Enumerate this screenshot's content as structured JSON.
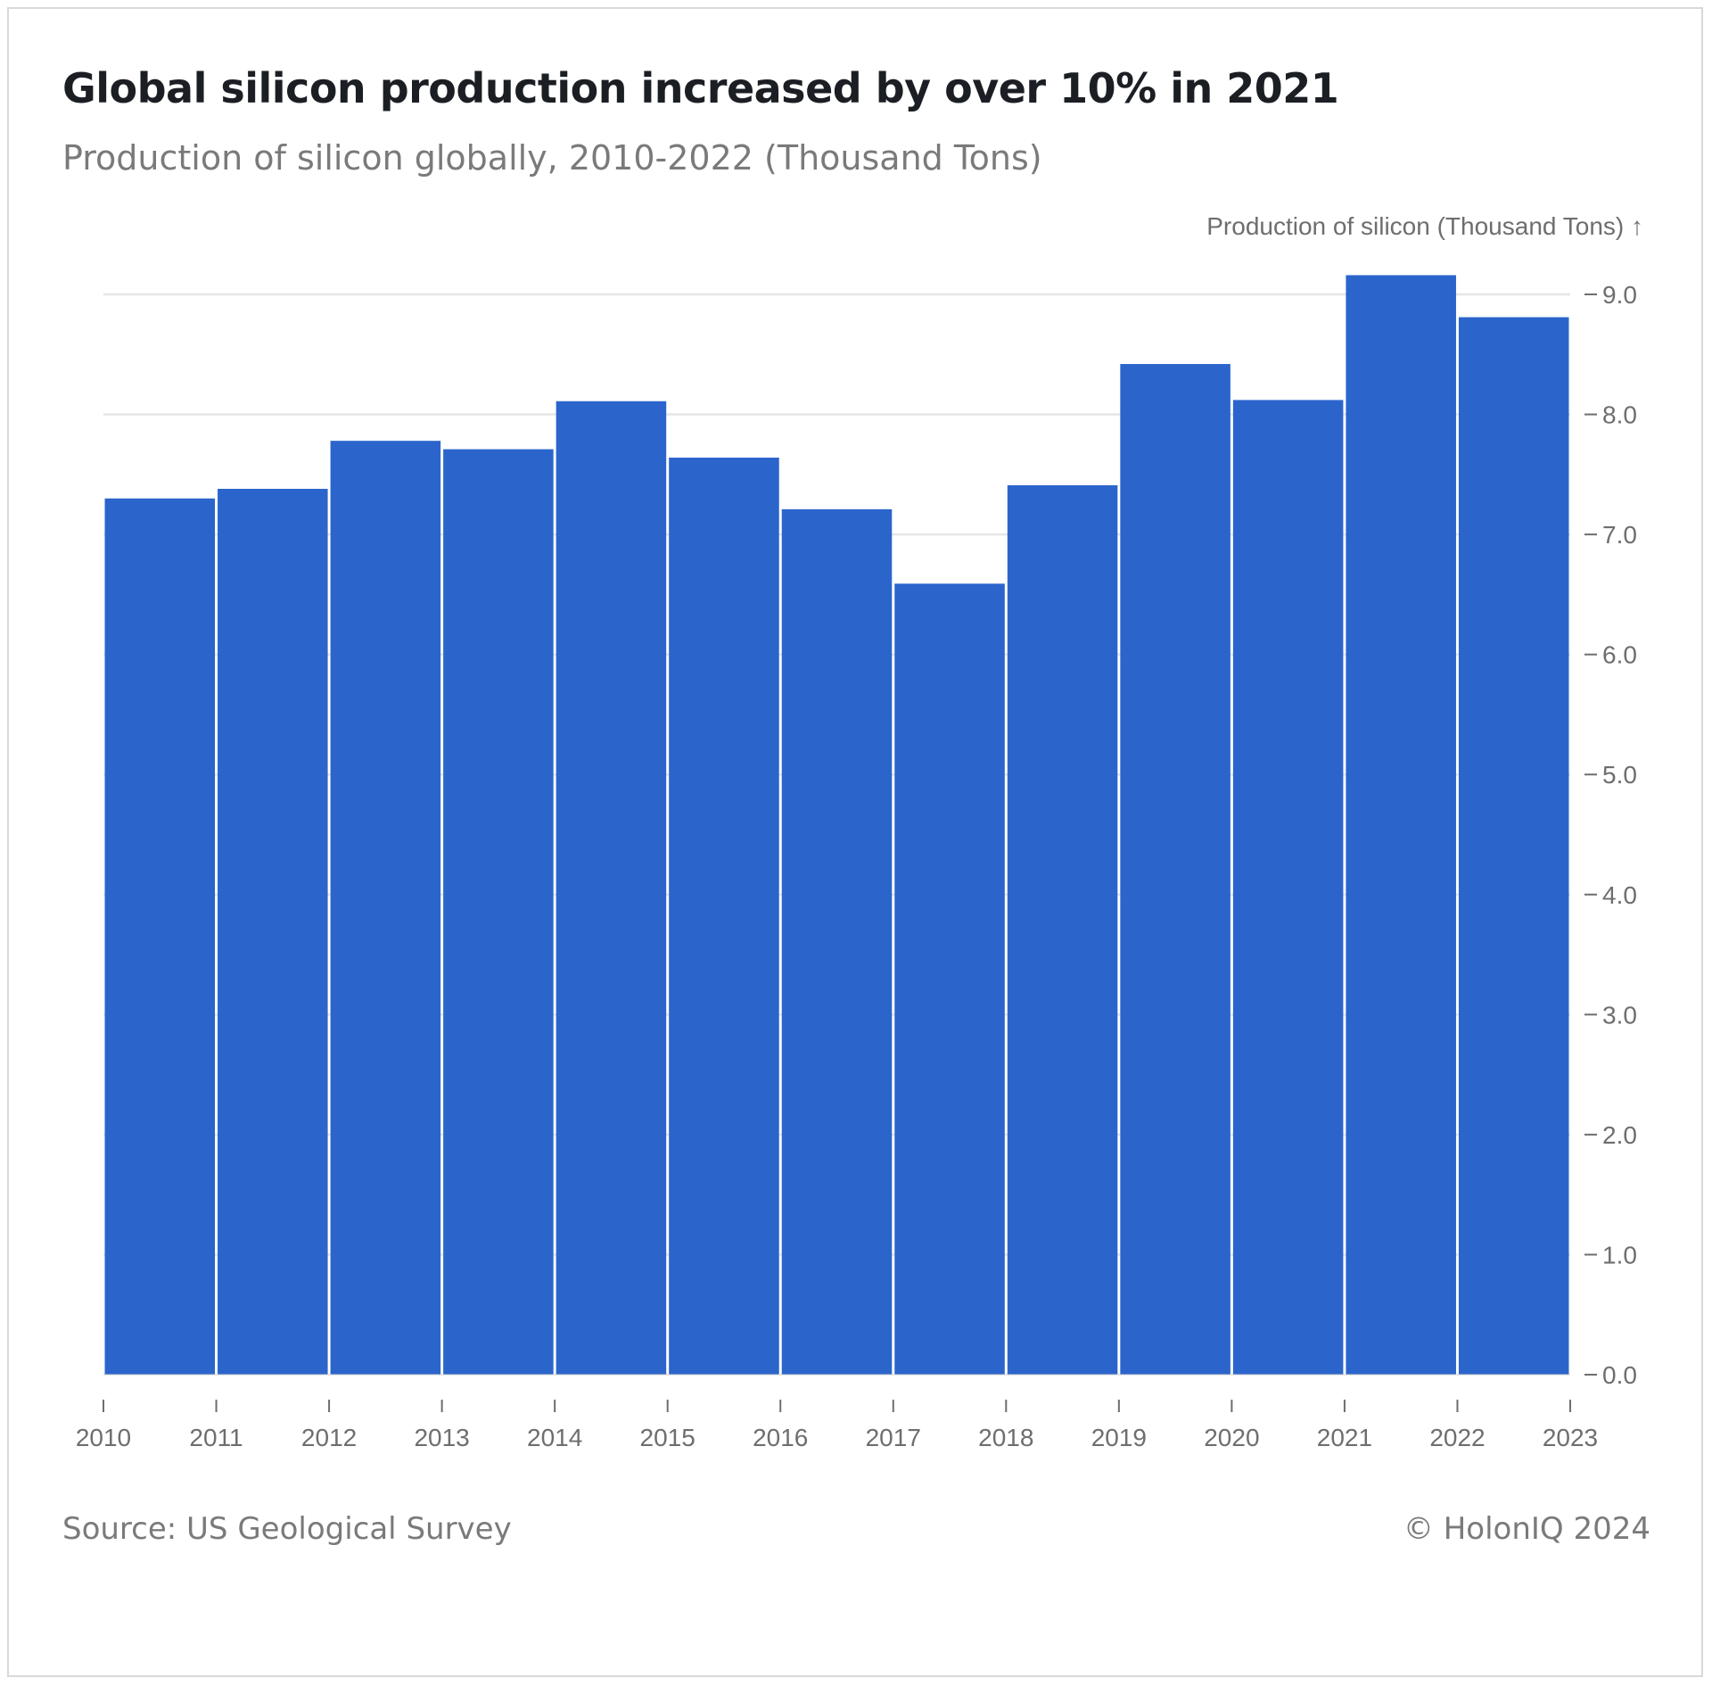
{
  "header": {
    "title": "Global silicon production increased by over 10% in 2021",
    "subtitle": "Production of silicon globally, 2010-2022 (Thousand Tons)"
  },
  "footer": {
    "source": "Source: US Geological Survey",
    "copyright": "© HolonIQ 2024"
  },
  "colors": {
    "bar": "#2b65cc",
    "gridline": "#e6e6e6",
    "axis_text": "#6e6e6e"
  },
  "chart_data": {
    "type": "bar",
    "x_edges": [
      2010,
      2011,
      2012,
      2013,
      2014,
      2015,
      2016,
      2017,
      2018,
      2019,
      2020,
      2021,
      2022,
      2023
    ],
    "x_tick_labels": [
      "2010",
      "2011",
      "2012",
      "2013",
      "2014",
      "2015",
      "2016",
      "2017",
      "2018",
      "2019",
      "2020",
      "2021",
      "2022",
      "2023"
    ],
    "categories": [
      "2010",
      "2011",
      "2012",
      "2013",
      "2014",
      "2015",
      "2016",
      "2017",
      "2018",
      "2019",
      "2020",
      "2021",
      "2022"
    ],
    "values": [
      7.3,
      7.38,
      7.78,
      7.71,
      8.11,
      7.64,
      7.21,
      6.59,
      7.41,
      8.42,
      8.12,
      9.16,
      8.81
    ],
    "ylabel": "Production of silicon (Thousand Tons) ↑",
    "ylim": [
      0,
      9
    ],
    "y_ticks": [
      0,
      1,
      2,
      3,
      4,
      5,
      6,
      7,
      8,
      9
    ],
    "y_tick_labels": [
      "0.0",
      "1.0",
      "2.0",
      "3.0",
      "4.0",
      "5.0",
      "6.0",
      "7.0",
      "8.0",
      "9.0"
    ],
    "y_axis_side": "right",
    "grid": true
  }
}
